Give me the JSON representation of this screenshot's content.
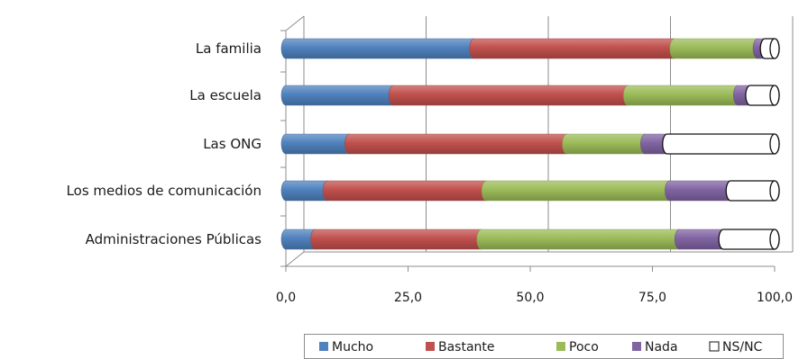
{
  "chart_data": {
    "type": "bar",
    "orientation": "horizontal",
    "stacked": true,
    "categories": [
      "La familia",
      "La escuela",
      "Las ONG",
      "Los medios de comunicación",
      "Administraciones Públicas"
    ],
    "series": [
      {
        "name": "Mucho",
        "color": "#4f81bd",
        "values": [
          38.5,
          22.0,
          13.0,
          8.5,
          6.0
        ]
      },
      {
        "name": "Bastante",
        "color": "#c0504d",
        "values": [
          41.0,
          48.0,
          44.5,
          32.5,
          34.0
        ]
      },
      {
        "name": "Poco",
        "color": "#9bbb59",
        "values": [
          17.0,
          22.5,
          16.0,
          37.5,
          40.5
        ]
      },
      {
        "name": "Nada",
        "color": "#8064a2",
        "values": [
          1.5,
          2.5,
          4.5,
          12.5,
          9.0
        ]
      },
      {
        "name": "NS/NC",
        "color": "#ffffff",
        "values": [
          2.0,
          5.0,
          22.0,
          9.0,
          10.5
        ]
      }
    ],
    "xticks": [
      "0,0",
      "25,0",
      "50,0",
      "75,0",
      "100,0"
    ],
    "xlim": [
      0,
      100
    ],
    "grid": "vertical",
    "legend_position": "bottom-right"
  }
}
